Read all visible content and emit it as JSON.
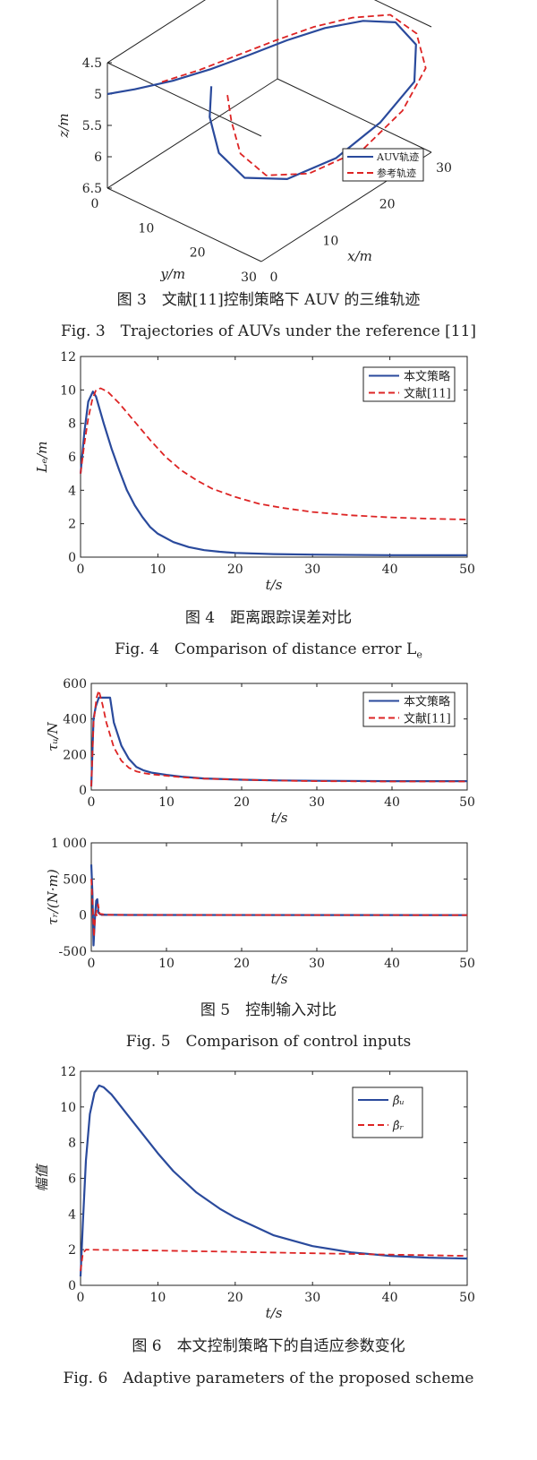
{
  "chart_data": [
    {
      "type": "line",
      "subtype": "3d-trajectory",
      "caption_cn": "图 3　文献[11]控制策略下 AUV 的三维轨迹",
      "caption_en": "Fig. 3　Trajectories of AUVs under the reference [11]",
      "xlabel": "x/m",
      "ylabel": "y/m",
      "zlabel": "z/m",
      "xlim": [
        0,
        30
      ],
      "ylim": [
        0,
        30
      ],
      "zlim": [
        4.5,
        6.5
      ],
      "z_reversed": true,
      "xticks": [
        "0",
        "10",
        "20",
        "30"
      ],
      "yticks": [
        "0",
        "10",
        "20",
        "30"
      ],
      "zticks": [
        "4.5",
        "5",
        "5.5",
        "6",
        "6.5"
      ],
      "legend_position": "right",
      "series": [
        {
          "name": "AUV轨迹",
          "color": "#2a4a9c",
          "style": "solid",
          "points": [
            [
              0,
              0,
              5
            ],
            [
              3,
              2,
              5.02
            ],
            [
              7,
              5,
              5.0
            ],
            [
              11,
              8,
              4.93
            ],
            [
              15,
              11,
              4.82
            ],
            [
              19,
              14,
              4.7
            ],
            [
              23,
              17,
              4.62
            ],
            [
              27,
              20,
              4.62
            ],
            [
              30,
              23,
              4.7
            ],
            [
              30,
              27,
              4.9
            ],
            [
              27,
              30,
              5.2
            ],
            [
              21,
              30,
              5.5
            ],
            [
              15,
              28,
              5.8
            ],
            [
              10,
              24,
              6.0
            ],
            [
              7,
              19,
              6.0
            ],
            [
              7,
              14,
              5.8
            ],
            [
              9,
              10,
              5.5
            ],
            [
              12,
              7,
              5.3
            ]
          ]
        },
        {
          "name": "参考轨迹",
          "color": "#dd2424",
          "style": "dashed",
          "points": [
            [
              6,
              4,
              5.0
            ],
            [
              10,
              7,
              4.92
            ],
            [
              14,
              10,
              4.8
            ],
            [
              18,
              13,
              4.68
            ],
            [
              22,
              16,
              4.58
            ],
            [
              26,
              19,
              4.55
            ],
            [
              30,
              22,
              4.62
            ],
            [
              31,
              26,
              4.82
            ],
            [
              29,
              30,
              5.1
            ],
            [
              24,
              31,
              5.45
            ],
            [
              18,
              30,
              5.75
            ],
            [
              12,
              26,
              5.95
            ],
            [
              9,
              21,
              6.0
            ],
            [
              9,
              16,
              5.85
            ],
            [
              11,
              12,
              5.6
            ],
            [
              13,
              9,
              5.4
            ]
          ]
        }
      ]
    },
    {
      "type": "line",
      "caption_cn": "图 4　距离跟踪误差对比",
      "caption_en": "Fig. 4　Comparison of distance error L",
      "caption_en_sub": "e",
      "xlabel": "t/s",
      "ylabel": "Lₑ/m",
      "xlim": [
        0,
        50
      ],
      "ylim": [
        0,
        12
      ],
      "xticks": [
        "0",
        "10",
        "20",
        "30",
        "40",
        "50"
      ],
      "yticks": [
        "0",
        "2",
        "4",
        "6",
        "8",
        "10",
        "12"
      ],
      "legend_position": "top-right",
      "series": [
        {
          "name": "本文策略",
          "color": "#2a4a9c",
          "style": "solid",
          "points": [
            [
              0,
              5
            ],
            [
              0.5,
              7.5
            ],
            [
              1,
              9.3
            ],
            [
              1.6,
              9.9
            ],
            [
              2,
              9.6
            ],
            [
              3,
              8.0
            ],
            [
              4,
              6.5
            ],
            [
              5,
              5.2
            ],
            [
              6,
              4.0
            ],
            [
              7,
              3.1
            ],
            [
              8,
              2.4
            ],
            [
              9,
              1.8
            ],
            [
              10,
              1.4
            ],
            [
              12,
              0.9
            ],
            [
              14,
              0.6
            ],
            [
              16,
              0.42
            ],
            [
              18,
              0.32
            ],
            [
              20,
              0.25
            ],
            [
              25,
              0.18
            ],
            [
              30,
              0.15
            ],
            [
              40,
              0.12
            ],
            [
              50,
              0.11
            ]
          ]
        },
        {
          "name": "文献[11]",
          "color": "#dd2424",
          "style": "dashed",
          "points": [
            [
              0,
              5
            ],
            [
              0.5,
              6.8
            ],
            [
              1,
              8.3
            ],
            [
              1.5,
              9.4
            ],
            [
              2,
              10.0
            ],
            [
              2.6,
              10.1
            ],
            [
              3.5,
              9.9
            ],
            [
              5,
              9.2
            ],
            [
              7,
              8.1
            ],
            [
              9,
              7.0
            ],
            [
              11,
              6.0
            ],
            [
              13,
              5.2
            ],
            [
              15,
              4.6
            ],
            [
              17,
              4.1
            ],
            [
              20,
              3.6
            ],
            [
              23,
              3.2
            ],
            [
              26,
              2.95
            ],
            [
              30,
              2.7
            ],
            [
              35,
              2.5
            ],
            [
              40,
              2.38
            ],
            [
              45,
              2.3
            ],
            [
              50,
              2.25
            ]
          ]
        }
      ]
    },
    {
      "type": "line",
      "xlabel": "t/s",
      "ylabel": "τᵤ/N",
      "xlim": [
        0,
        50
      ],
      "ylim": [
        0,
        600
      ],
      "xticks": [
        "0",
        "10",
        "20",
        "30",
        "40",
        "50"
      ],
      "yticks": [
        "0",
        "200",
        "400",
        "600"
      ],
      "legend_position": "top-right",
      "series": [
        {
          "name": "本文策略",
          "color": "#2a4a9c",
          "style": "solid",
          "points": [
            [
              0,
              20
            ],
            [
              0.3,
              400
            ],
            [
              0.6,
              470
            ],
            [
              1,
              520
            ],
            [
              2.5,
              520
            ],
            [
              3,
              380
            ],
            [
              4,
              250
            ],
            [
              5,
              175
            ],
            [
              6,
              130
            ],
            [
              7,
              110
            ],
            [
              8,
              98
            ],
            [
              10,
              85
            ],
            [
              12,
              75
            ],
            [
              15,
              65
            ],
            [
              20,
              58
            ],
            [
              25,
              54
            ],
            [
              30,
              52
            ],
            [
              40,
              50
            ],
            [
              50,
              50
            ]
          ]
        },
        {
          "name": "文献[11]",
          "color": "#dd2424",
          "style": "dashed",
          "points": [
            [
              0,
              20
            ],
            [
              0.3,
              380
            ],
            [
              0.7,
              520
            ],
            [
              1,
              560
            ],
            [
              1.5,
              480
            ],
            [
              2,
              380
            ],
            [
              3,
              240
            ],
            [
              4,
              165
            ],
            [
              5,
              125
            ],
            [
              6,
              105
            ],
            [
              7,
              95
            ],
            [
              8,
              88
            ],
            [
              10,
              80
            ],
            [
              12,
              72
            ],
            [
              15,
              64
            ],
            [
              20,
              58
            ],
            [
              25,
              53
            ],
            [
              30,
              50
            ],
            [
              40,
              48
            ],
            [
              50,
              48
            ]
          ]
        }
      ]
    },
    {
      "type": "line",
      "caption_cn": "图 5　控制输入对比",
      "caption_en": "Fig. 5　Comparison of control inputs",
      "xlabel": "t/s",
      "ylabel": "τᵣ/(N·m)",
      "xlim": [
        0,
        50
      ],
      "ylim": [
        -500,
        1000
      ],
      "xticks": [
        "0",
        "10",
        "20",
        "30",
        "40",
        "50"
      ],
      "yticks": [
        "-500",
        "0",
        "500",
        "1 000"
      ],
      "series": [
        {
          "name": "本文策略",
          "color": "#2a4a9c",
          "style": "solid",
          "points": [
            [
              0,
              700
            ],
            [
              0.15,
              300
            ],
            [
              0.3,
              -420
            ],
            [
              0.45,
              -100
            ],
            [
              0.55,
              50
            ],
            [
              0.65,
              200
            ],
            [
              0.8,
              220
            ],
            [
              0.95,
              30
            ],
            [
              1.2,
              10
            ],
            [
              2,
              5
            ],
            [
              5,
              2
            ],
            [
              50,
              0
            ]
          ]
        },
        {
          "name": "文献[11]",
          "color": "#dd2424",
          "style": "dashed",
          "points": [
            [
              0,
              500
            ],
            [
              0.2,
              100
            ],
            [
              0.35,
              -300
            ],
            [
              0.5,
              -50
            ],
            [
              0.7,
              60
            ],
            [
              0.9,
              150
            ],
            [
              1.1,
              20
            ],
            [
              2,
              5
            ],
            [
              5,
              2
            ],
            [
              50,
              0
            ]
          ]
        }
      ]
    },
    {
      "type": "line",
      "caption_cn": "图 6　本文控制策略下的自适应参数变化",
      "caption_en": "Fig. 6　Adaptive parameters of the proposed scheme",
      "xlabel": "t/s",
      "ylabel": "幅值",
      "xlim": [
        0,
        50
      ],
      "ylim": [
        0,
        12
      ],
      "xticks": [
        "0",
        "10",
        "20",
        "30",
        "40",
        "50"
      ],
      "yticks": [
        "0",
        "2",
        "4",
        "6",
        "8",
        "10",
        "12"
      ],
      "legend_position": "top-right",
      "series": [
        {
          "name": "β̂ᵤ",
          "color": "#2a4a9c",
          "style": "solid",
          "points": [
            [
              0,
              0.5
            ],
            [
              0.3,
              3.5
            ],
            [
              0.7,
              7.0
            ],
            [
              1.2,
              9.6
            ],
            [
              1.8,
              10.8
            ],
            [
              2.4,
              11.2
            ],
            [
              3,
              11.1
            ],
            [
              4,
              10.7
            ],
            [
              6,
              9.6
            ],
            [
              8,
              8.5
            ],
            [
              10,
              7.4
            ],
            [
              12,
              6.4
            ],
            [
              15,
              5.2
            ],
            [
              18,
              4.3
            ],
            [
              20,
              3.8
            ],
            [
              25,
              2.8
            ],
            [
              30,
              2.2
            ],
            [
              35,
              1.85
            ],
            [
              40,
              1.65
            ],
            [
              45,
              1.55
            ],
            [
              50,
              1.5
            ]
          ]
        },
        {
          "name": "β̂ᵣ",
          "color": "#dd2424",
          "style": "dashed",
          "points": [
            [
              0,
              0.8
            ],
            [
              0.3,
              1.8
            ],
            [
              0.7,
              2.0
            ],
            [
              5,
              1.98
            ],
            [
              10,
              1.95
            ],
            [
              20,
              1.88
            ],
            [
              30,
              1.8
            ],
            [
              40,
              1.72
            ],
            [
              50,
              1.65
            ]
          ]
        }
      ]
    }
  ]
}
